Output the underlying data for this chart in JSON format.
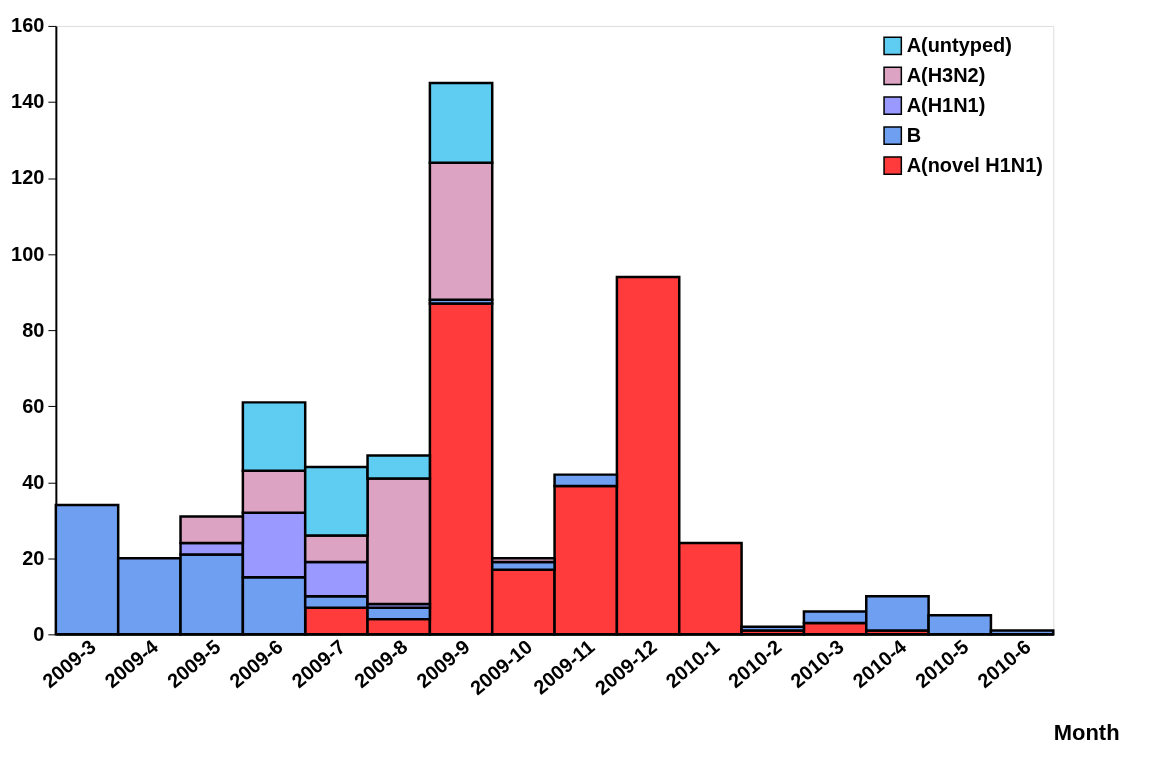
{
  "chart_data": {
    "type": "bar",
    "stacked": true,
    "xlabel": "Month",
    "categories": [
      "2009-3",
      "2009-4",
      "2009-5",
      "2009-6",
      "2009-7",
      "2009-8",
      "2009-9",
      "2009-10",
      "2009-11",
      "2009-12",
      "2010-1",
      "2010-2",
      "2010-3",
      "2010-4",
      "2010-5",
      "2010-6"
    ],
    "series": [
      {
        "name": "A(novel H1N1)",
        "color": "#ff3b3b",
        "values": [
          null,
          null,
          null,
          null,
          7,
          4,
          87,
          17,
          39,
          94,
          24,
          1,
          3,
          1,
          null,
          null
        ]
      },
      {
        "name": "B",
        "color": "#6f9ff0",
        "values": [
          34,
          20,
          21,
          15,
          3,
          3,
          1,
          2,
          3,
          null,
          null,
          1,
          3,
          9,
          5,
          1
        ]
      },
      {
        "name": "A(H1N1)",
        "color": "#9999ff",
        "values": [
          null,
          null,
          3,
          17,
          9,
          1,
          null,
          null,
          null,
          null,
          null,
          null,
          null,
          null,
          null,
          null
        ]
      },
      {
        "name": "A(H3N2)",
        "color": "#dca3c3",
        "values": [
          null,
          null,
          7,
          11,
          7,
          33,
          36,
          1,
          null,
          null,
          null,
          null,
          null,
          null,
          null,
          null
        ]
      },
      {
        "name": "A(untyped)",
        "color": "#5fcdf2",
        "values": [
          null,
          null,
          null,
          18,
          18,
          6,
          21,
          null,
          null,
          null,
          null,
          null,
          null,
          null,
          null,
          null
        ]
      }
    ],
    "ylim": [
      0,
      160
    ],
    "yticks": [
      0,
      20,
      40,
      60,
      80,
      100,
      120,
      140,
      160
    ],
    "grid": false,
    "legend": "top right"
  }
}
